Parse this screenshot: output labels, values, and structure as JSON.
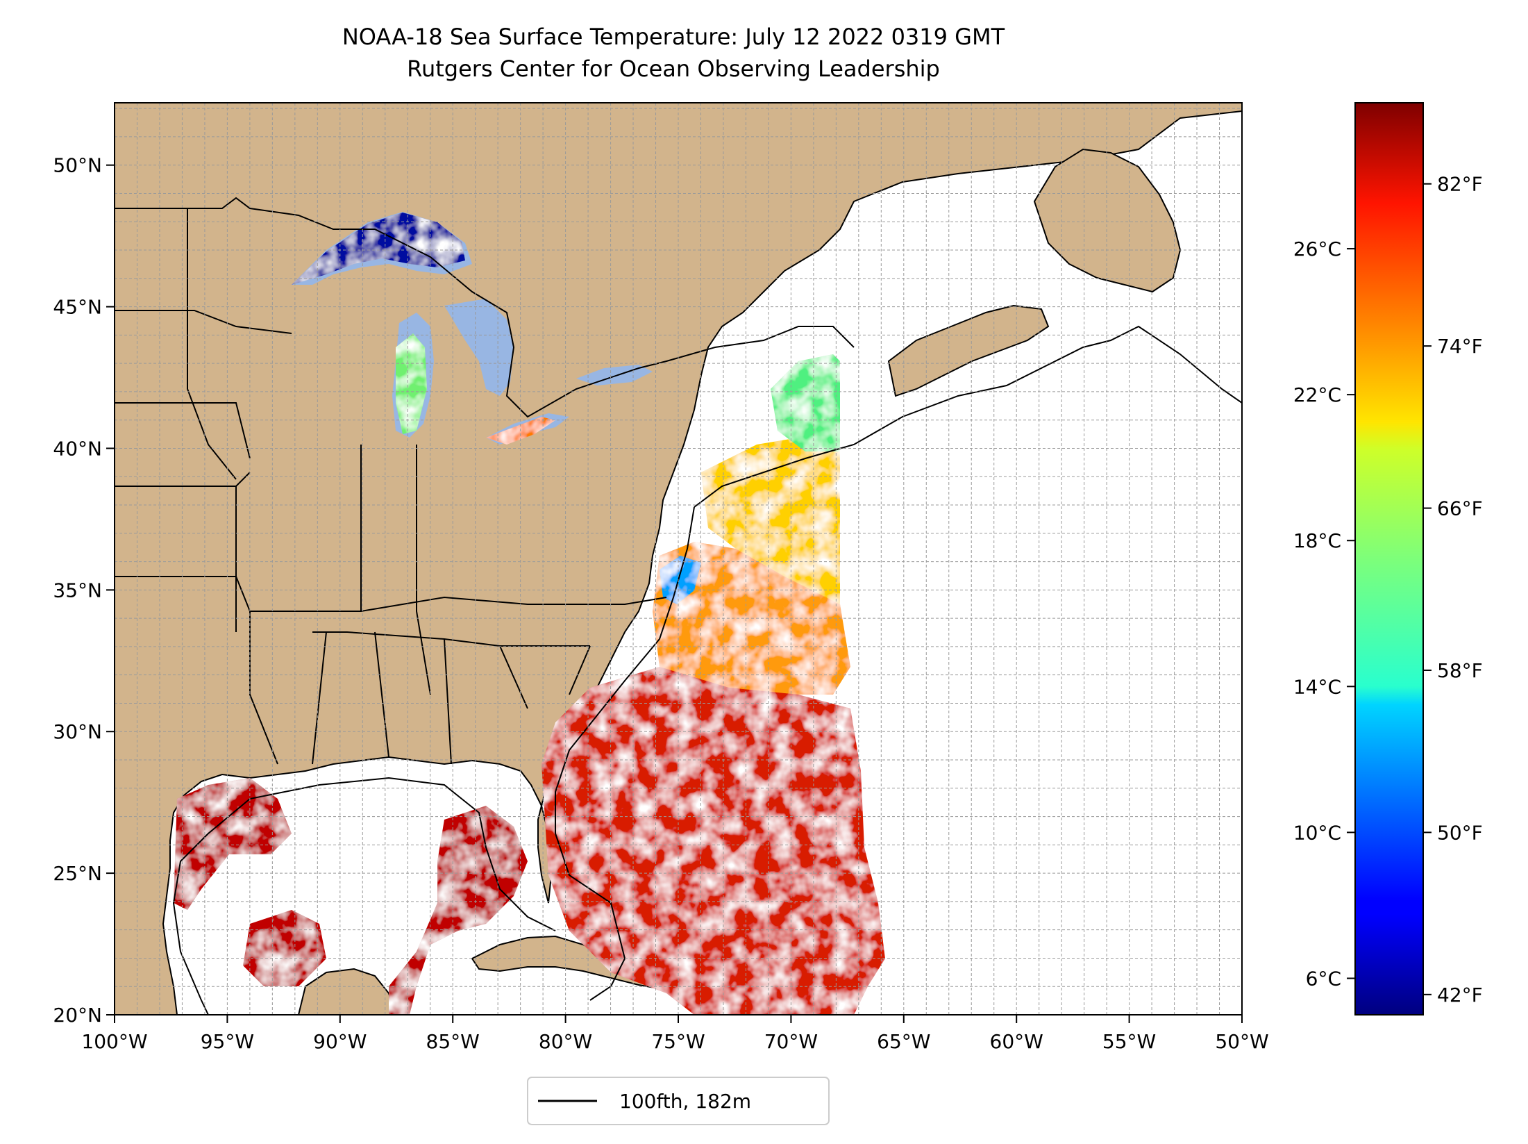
{
  "title": "NOAA-18 Sea Surface Temperature: July 12 2022 0319 GMT",
  "subtitle": "Rutgers Center for Ocean Observing Leadership",
  "map": {
    "lon_range": [
      -100,
      -50
    ],
    "lat_range": [
      20,
      52.2
    ],
    "lon_ticks": [
      {
        "lon": -100,
        "label": "100°W"
      },
      {
        "lon": -95,
        "label": "95°W"
      },
      {
        "lon": -90,
        "label": "90°W"
      },
      {
        "lon": -85,
        "label": "85°W"
      },
      {
        "lon": -80,
        "label": "80°W"
      },
      {
        "lon": -75,
        "label": "75°W"
      },
      {
        "lon": -70,
        "label": "70°W"
      },
      {
        "lon": -65,
        "label": "65°W"
      },
      {
        "lon": -60,
        "label": "60°W"
      },
      {
        "lon": -55,
        "label": "55°W"
      },
      {
        "lon": -50,
        "label": "50°W"
      }
    ],
    "lat_ticks": [
      {
        "lat": 50,
        "label": "50°N"
      },
      {
        "lat": 45,
        "label": "45°N"
      },
      {
        "lat": 40,
        "label": "40°N"
      },
      {
        "lat": 35,
        "label": "35°N"
      },
      {
        "lat": 30,
        "label": "30°N"
      },
      {
        "lat": 25,
        "label": "25°N"
      },
      {
        "lat": 20,
        "label": "20°N"
      }
    ],
    "grid": true,
    "grid_step_deg": 1,
    "land_color": "#d2b48c",
    "lake_color": "#98b6e3",
    "no_data_color": "#ffffff"
  },
  "colorbar": {
    "colormap": "jet",
    "range_c": [
      5,
      30
    ],
    "celsius_ticks": [
      {
        "value": 26,
        "label": "26°C"
      },
      {
        "value": 22,
        "label": "22°C"
      },
      {
        "value": 18,
        "label": "18°C"
      },
      {
        "value": 14,
        "label": "14°C"
      },
      {
        "value": 10,
        "label": "10°C"
      },
      {
        "value": 6,
        "label": "6°C"
      }
    ],
    "fahrenheit_ticks": [
      {
        "value": 82,
        "label": "82°F"
      },
      {
        "value": 74,
        "label": "74°F"
      },
      {
        "value": 66,
        "label": "66°F"
      },
      {
        "value": 58,
        "label": "58°F"
      },
      {
        "value": 50,
        "label": "50°F"
      },
      {
        "value": 42,
        "label": "42°F"
      }
    ]
  },
  "legend": {
    "label": "100fth, 182m",
    "line_color": "#000000",
    "placement": "bottom-center"
  },
  "colors": {
    "sst_hot": "#c00000",
    "sst_warm": "#ff5a00",
    "sst_mid": "#ffd000",
    "sst_cool": "#50f080",
    "sst_cold": "#00a0ff",
    "sst_lake_cold": "#0010a0"
  }
}
